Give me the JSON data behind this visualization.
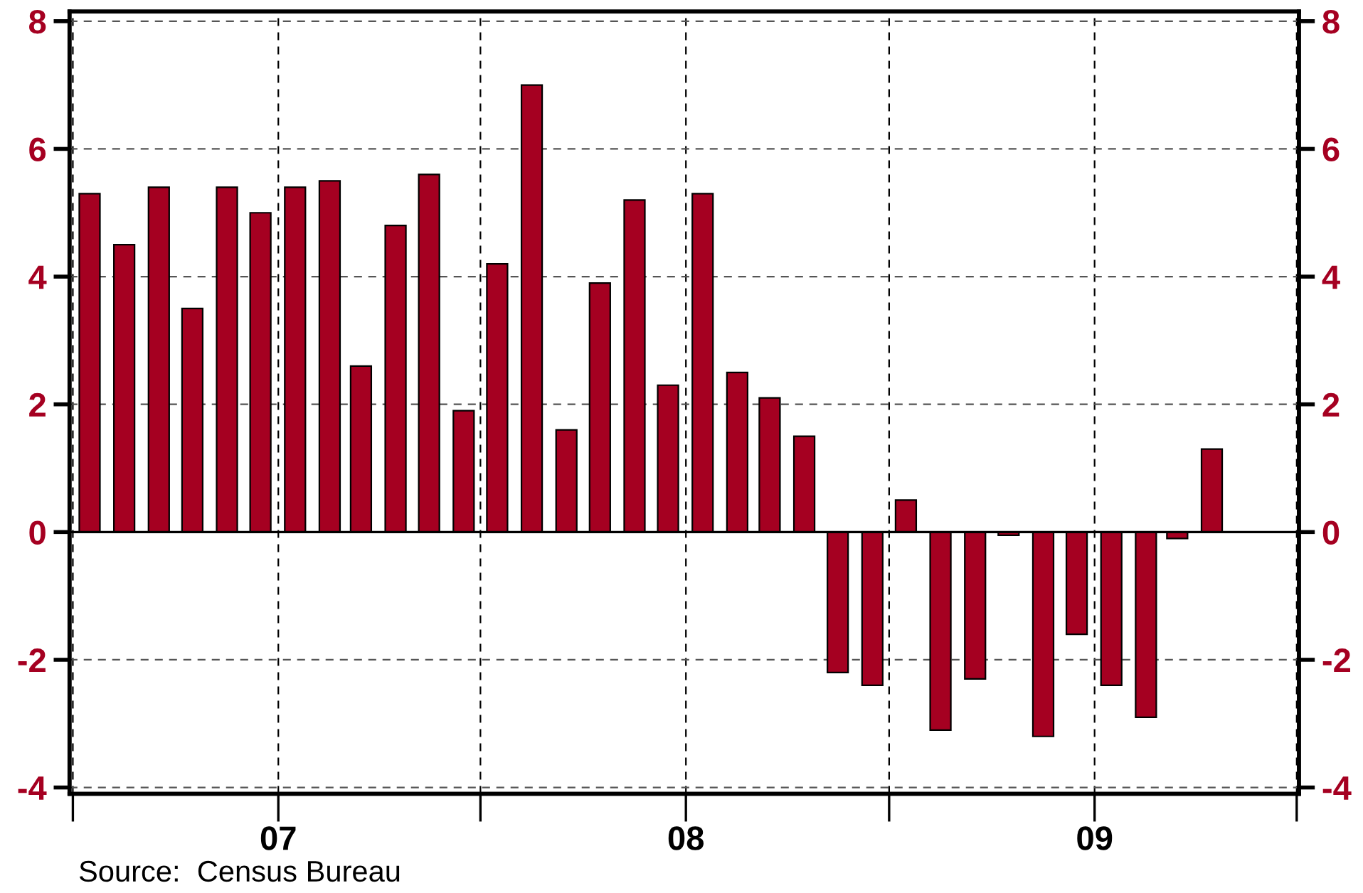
{
  "chart_data": {
    "type": "bar",
    "x": [
      "2006-07-16",
      "2006-08-16",
      "2006-09-16",
      "2006-10-16",
      "2006-11-16",
      "2006-12-16",
      "2007-01-16",
      "2007-02-16",
      "2007-03-16",
      "2007-04-16",
      "2007-05-16",
      "2007-06-16",
      "2007-07-16",
      "2007-08-16",
      "2007-09-16",
      "2007-10-16",
      "2007-11-16",
      "2007-12-16",
      "2008-01-16",
      "2008-02-16",
      "2008-03-16",
      "2008-04-16",
      "2008-05-16",
      "2008-06-16",
      "2008-07-16",
      "2008-08-16",
      "2008-09-16",
      "2008-10-16",
      "2008-11-16",
      "2008-12-16",
      "2009-01-16",
      "2009-02-16",
      "2009-03-16",
      "2009-04-16"
    ],
    "values": [
      5.3,
      4.5,
      5.4,
      3.5,
      5.4,
      5.0,
      5.4,
      5.5,
      2.6,
      4.8,
      5.6,
      1.9,
      4.2,
      7.0,
      1.6,
      3.9,
      5.2,
      2.3,
      5.3,
      2.5,
      2.1,
      1.5,
      -2.2,
      -2.4,
      0.5,
      -3.1,
      -2.3,
      -0.05,
      -3.2,
      -1.6,
      -2.4,
      -2.9,
      -0.1,
      1.3
    ],
    "color": "#a50021",
    "ylim": [
      -4.1,
      8.15
    ],
    "yticks": [
      -4,
      -2,
      0,
      2,
      4,
      6,
      8
    ],
    "y2lim": [
      -4.1,
      8.15
    ],
    "y2ticks": [
      -4,
      -2,
      0,
      2,
      4,
      6,
      8
    ],
    "xlim": [
      "2006-06-28",
      "2009-07-03"
    ],
    "xticks": [
      {
        "value": "2006-07-01",
        "label": null
      },
      {
        "value": "2007-01-01",
        "label": "07"
      },
      {
        "value": "2007-07-01",
        "label": null
      },
      {
        "value": "2008-01-01",
        "label": "08"
      },
      {
        "value": "2008-07-01",
        "label": null
      },
      {
        "value": "2009-01-01",
        "label": "09"
      },
      {
        "value": "2009-07-01",
        "label": null
      }
    ],
    "ref_lines": [
      {
        "axis": "y",
        "value": 0,
        "label": null,
        "color": "#000000",
        "line_style": "solid"
      }
    ],
    "grid": true,
    "annotations": [
      "Source:  Census Bureau"
    ]
  }
}
